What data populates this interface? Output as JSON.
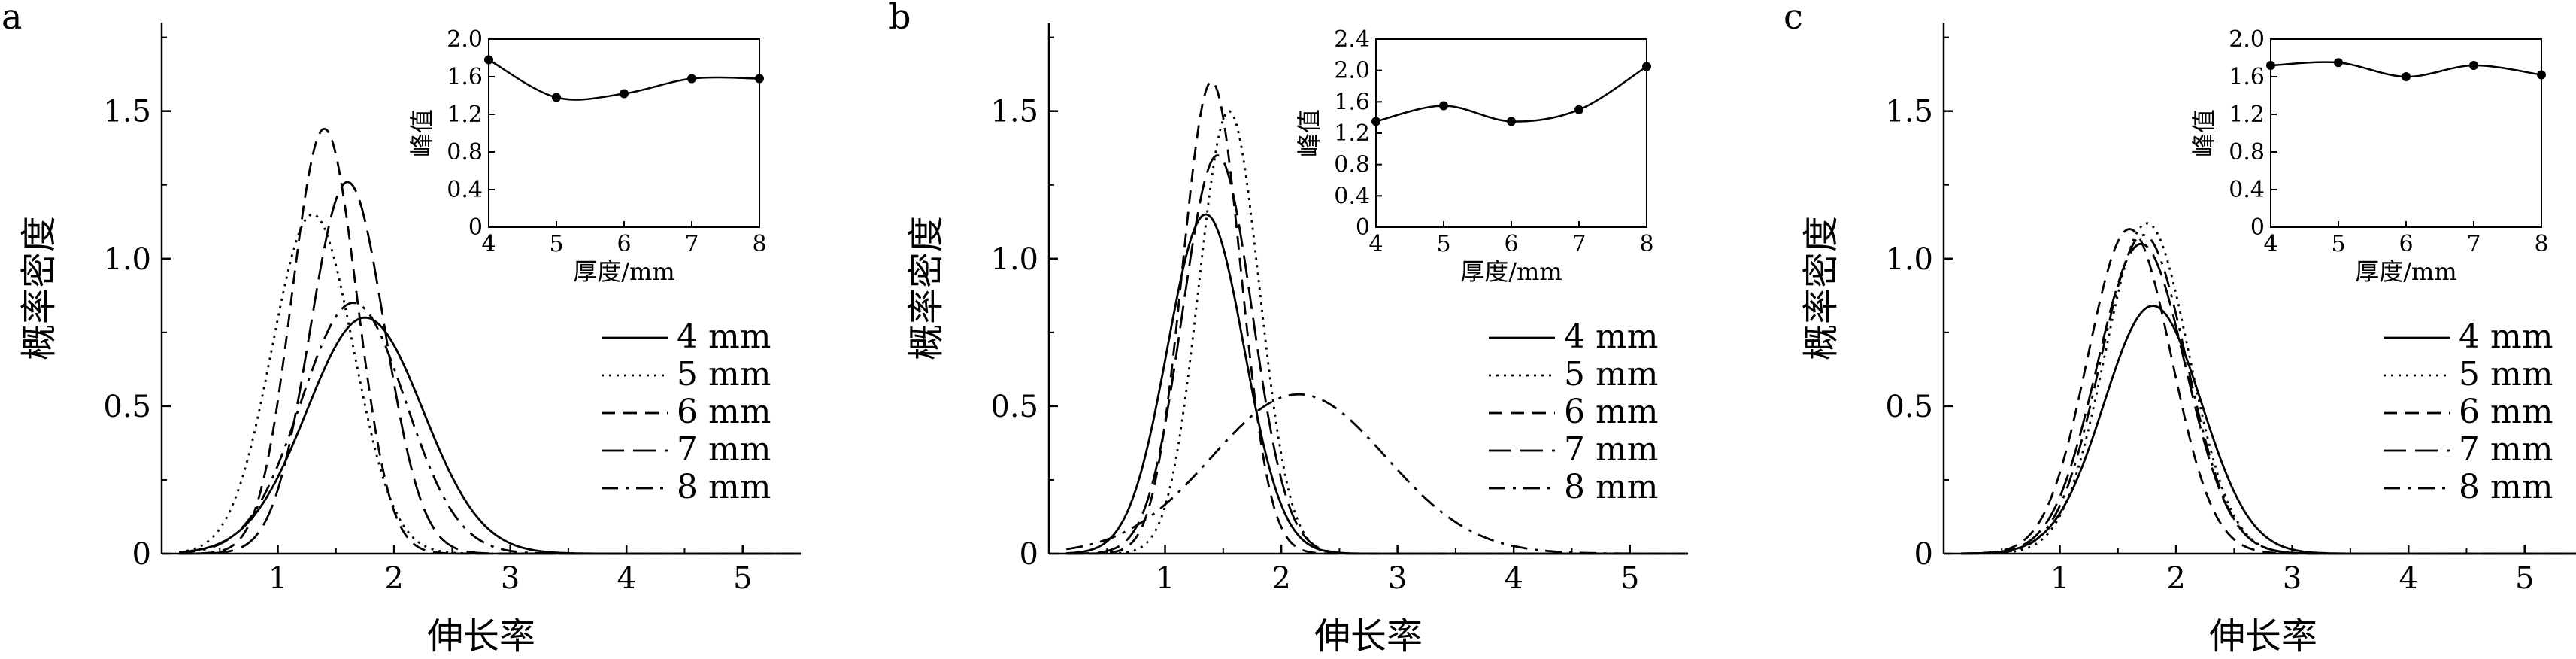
{
  "chart_data": [
    {
      "type": "line",
      "panel_label": "a",
      "xlabel": "伸长率",
      "ylabel": "概率密度",
      "xlim": [
        0,
        5.5
      ],
      "ylim": [
        0,
        1.8
      ],
      "xticks": [
        "1",
        "2",
        "3",
        "4",
        "5"
      ],
      "yticks": [
        "0",
        "0.5",
        "1.0",
        "1.5"
      ],
      "legend_position": "center-right",
      "series": [
        {
          "name": "4 mm",
          "dash": "solid",
          "mu": 1.75,
          "sigma": 0.5,
          "peak": 0.8
        },
        {
          "name": "5 mm",
          "dash": "dot",
          "mu": 1.3,
          "sigma": 0.35,
          "peak": 1.15
        },
        {
          "name": "6 mm",
          "dash": "dash",
          "mu": 1.4,
          "sigma": 0.28,
          "peak": 1.44
        },
        {
          "name": "7 mm",
          "dash": "longdash",
          "mu": 1.6,
          "sigma": 0.32,
          "peak": 1.26
        },
        {
          "name": "8 mm",
          "dash": "dashdot",
          "mu": 1.65,
          "sigma": 0.45,
          "peak": 0.85
        }
      ],
      "inset": {
        "type": "line",
        "xlabel": "厚度/mm",
        "ylabel": "峰值",
        "xlim": [
          4,
          8
        ],
        "ylim": [
          0,
          2.0
        ],
        "xticks": [
          "4",
          "5",
          "6",
          "7",
          "8"
        ],
        "yticks": [
          "0",
          "0.4",
          "0.8",
          "1.2",
          "1.6",
          "2.0"
        ],
        "x": [
          4,
          5,
          6,
          7,
          8
        ],
        "y": [
          1.78,
          1.38,
          1.42,
          1.58,
          1.58
        ]
      }
    },
    {
      "type": "line",
      "panel_label": "b",
      "xlabel": "伸长率",
      "ylabel": "概率密度",
      "xlim": [
        0,
        5.5
      ],
      "ylim": [
        0,
        1.8
      ],
      "xticks": [
        "1",
        "2",
        "3",
        "4",
        "5"
      ],
      "yticks": [
        "0",
        "0.5",
        "1.0",
        "1.5"
      ],
      "legend_position": "center-right",
      "series": [
        {
          "name": "4 mm",
          "dash": "solid",
          "mu": 1.35,
          "sigma": 0.33,
          "peak": 1.15
        },
        {
          "name": "5 mm",
          "dash": "dot",
          "mu": 1.55,
          "sigma": 0.26,
          "peak": 1.5
        },
        {
          "name": "6 mm",
          "dash": "dash",
          "mu": 1.4,
          "sigma": 0.25,
          "peak": 1.6
        },
        {
          "name": "7 mm",
          "dash": "longdash",
          "mu": 1.45,
          "sigma": 0.3,
          "peak": 1.35
        },
        {
          "name": "8 mm",
          "dash": "dashdot",
          "mu": 2.15,
          "sigma": 0.75,
          "peak": 0.54
        }
      ],
      "inset": {
        "type": "line",
        "xlabel": "厚度/mm",
        "ylabel": "峰值",
        "xlim": [
          4,
          8
        ],
        "ylim": [
          0,
          2.4
        ],
        "xticks": [
          "4",
          "5",
          "6",
          "7",
          "8"
        ],
        "yticks": [
          "0",
          "0.4",
          "0.8",
          "1.2",
          "1.6",
          "2.0",
          "2.4"
        ],
        "x": [
          4,
          5,
          6,
          7,
          8
        ],
        "y": [
          1.35,
          1.55,
          1.35,
          1.5,
          2.05
        ]
      }
    },
    {
      "type": "line",
      "panel_label": "c",
      "xlabel": "伸长率",
      "ylabel": "概率密度",
      "xlim": [
        0,
        5.5
      ],
      "ylim": [
        0,
        1.8
      ],
      "xticks": [
        "1",
        "2",
        "3",
        "4",
        "5"
      ],
      "yticks": [
        "0",
        "0.5",
        "1.0",
        "1.5"
      ],
      "legend_position": "center-right",
      "series": [
        {
          "name": "4 mm",
          "dash": "solid",
          "mu": 1.8,
          "sigma": 0.42,
          "peak": 0.84
        },
        {
          "name": "5 mm",
          "dash": "dot",
          "mu": 1.75,
          "sigma": 0.36,
          "peak": 1.12
        },
        {
          "name": "6 mm",
          "dash": "dash",
          "mu": 1.6,
          "sigma": 0.36,
          "peak": 1.1
        },
        {
          "name": "7 mm",
          "dash": "longdash",
          "mu": 1.7,
          "sigma": 0.38,
          "peak": 1.05
        },
        {
          "name": "8 mm",
          "dash": "dashdot",
          "mu": 1.72,
          "sigma": 0.37,
          "peak": 1.08
        }
      ],
      "inset": {
        "type": "line",
        "xlabel": "厚度/mm",
        "ylabel": "峰值",
        "xlim": [
          4,
          8
        ],
        "ylim": [
          0,
          2.0
        ],
        "xticks": [
          "4",
          "5",
          "6",
          "7",
          "8"
        ],
        "yticks": [
          "0",
          "0.4",
          "0.8",
          "1.2",
          "1.6",
          "2.0"
        ],
        "x": [
          4,
          5,
          6,
          7,
          8
        ],
        "y": [
          1.72,
          1.75,
          1.6,
          1.72,
          1.62
        ]
      }
    }
  ]
}
